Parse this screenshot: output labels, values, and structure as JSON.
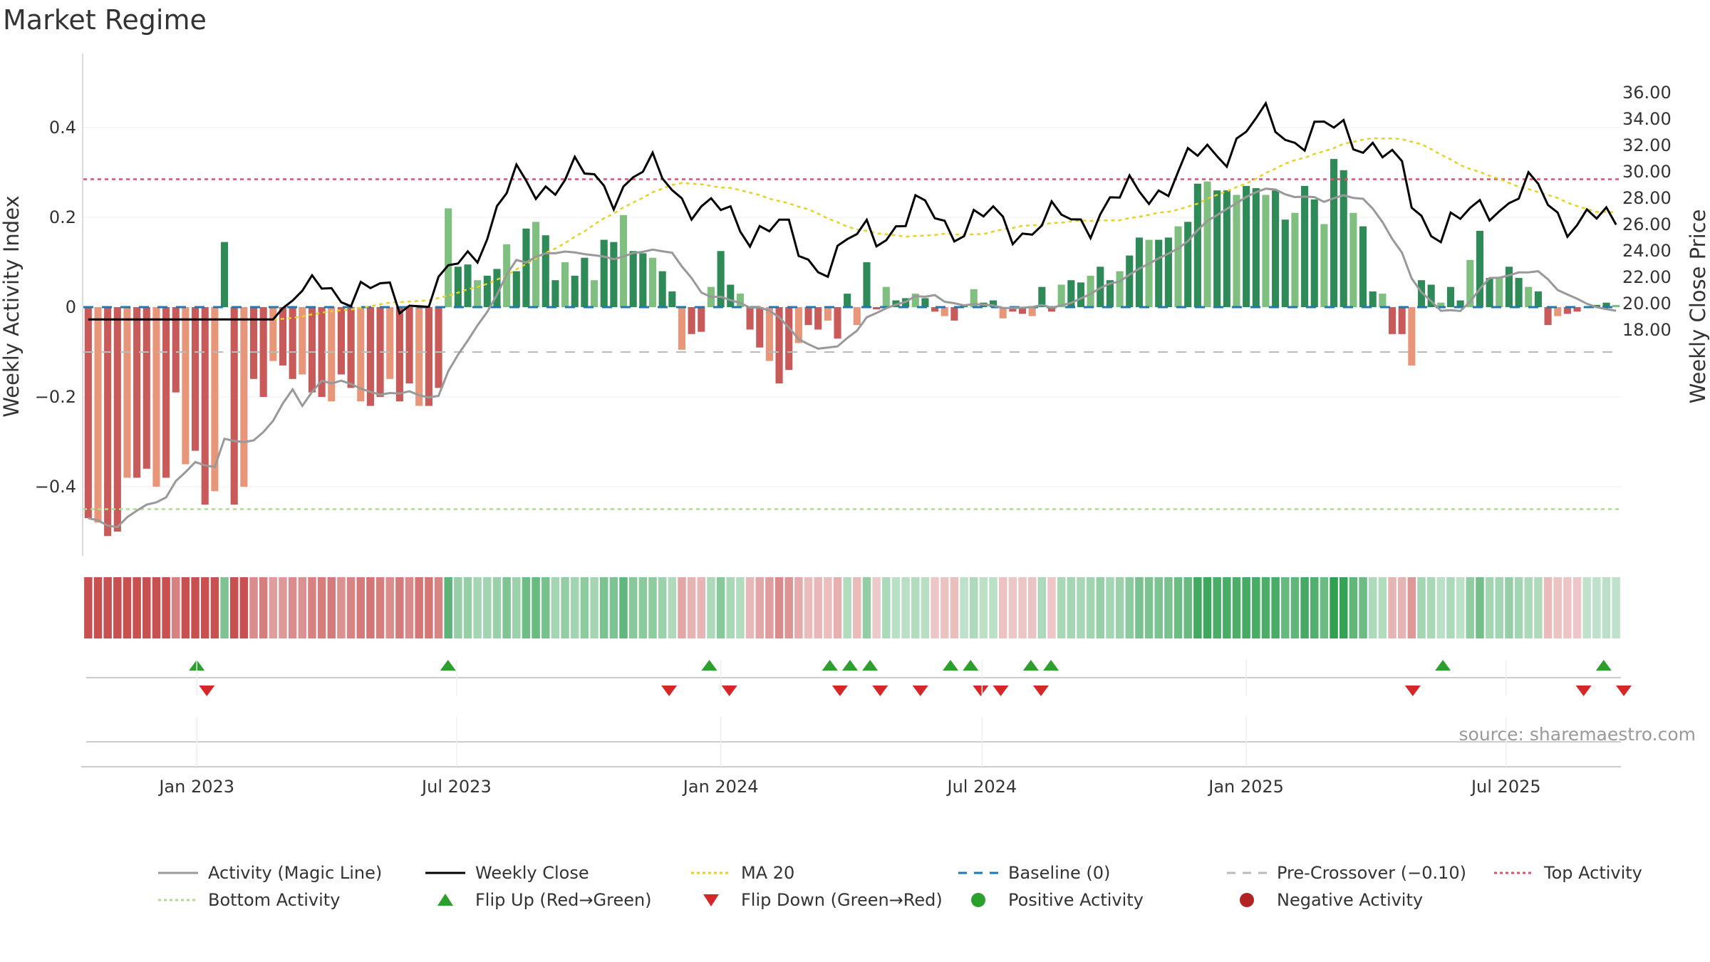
{
  "title": "Market Regime",
  "source": "source: sharemaestro.com",
  "colors": {
    "pos_dark": "#2e8b57",
    "pos_light": "#7fbf7f",
    "neg_dark": "#c85a5a",
    "neg_light": "#e8967a",
    "magic": "#999999",
    "close": "#000000",
    "ma": "#e6d224",
    "baseline": "#1f77b4",
    "precross": "#bbbbbb",
    "top": "#d9546a",
    "bottom": "#a8e08a",
    "flip_up": "#2ca02c",
    "flip_down": "#d62728",
    "pos_dot": "#2ca02c",
    "neg_dot": "#b22222"
  },
  "chart_data": {
    "type": "bar",
    "title": "Market Regime",
    "x_range": [
      "2022-10-14",
      "2025-09-19"
    ],
    "ylabel_left": "Weekly Activity Index",
    "ylabel_right": "Weekly Close Price",
    "ylim_left": [
      -0.55,
      0.55
    ],
    "ylim_right": [
      18.0,
      36.5
    ],
    "yticks_left": [
      "−0.4",
      "−0.2",
      "0",
      "0.2",
      "0.4"
    ],
    "yticks_left_values": [
      -0.4,
      -0.2,
      0,
      0.2,
      0.4
    ],
    "yticks_right": [
      "18.00",
      "20.00",
      "22.00",
      "24.00",
      "26.00",
      "28.00",
      "30.00",
      "32.00",
      "34.00",
      "36.00"
    ],
    "x_ticks": [
      {
        "date": "2023-01-01",
        "label": "Jan 2023"
      },
      {
        "date": "2023-07-01",
        "label": "Jul 2023"
      },
      {
        "date": "2024-01-01",
        "label": "Jan 2024"
      },
      {
        "date": "2024-07-01",
        "label": "Jul 2024"
      },
      {
        "date": "2025-01-01",
        "label": "Jan 2025"
      },
      {
        "date": "2025-07-01",
        "label": "Jul 2025"
      }
    ],
    "reference_lines": {
      "baseline": 0,
      "pre_crossover": -0.1,
      "top_activity": 0.285,
      "bottom_activity": -0.45
    },
    "activity_index": [
      -0.47,
      -0.48,
      -0.51,
      -0.5,
      -0.38,
      -0.38,
      -0.36,
      -0.4,
      -0.38,
      -0.19,
      -0.35,
      -0.32,
      -0.44,
      -0.41,
      0.145,
      -0.44,
      -0.4,
      -0.16,
      -0.2,
      -0.12,
      -0.13,
      -0.16,
      -0.15,
      -0.19,
      -0.2,
      -0.21,
      -0.15,
      -0.18,
      -0.21,
      -0.22,
      -0.2,
      -0.16,
      -0.21,
      -0.17,
      -0.22,
      -0.22,
      -0.18,
      0.22,
      0.09,
      0.095,
      0.06,
      0.07,
      0.085,
      0.14,
      0.08,
      0.175,
      0.19,
      0.16,
      0.06,
      0.1,
      0.07,
      0.11,
      0.06,
      0.15,
      0.145,
      0.205,
      0.125,
      0.12,
      0.11,
      0.08,
      0.035,
      -0.095,
      -0.06,
      -0.055,
      0.045,
      0.125,
      0.05,
      0.03,
      -0.05,
      -0.09,
      -0.12,
      -0.17,
      -0.14,
      -0.08,
      -0.04,
      -0.05,
      -0.03,
      -0.07,
      0.03,
      -0.04,
      0.1,
      -0.005,
      0.045,
      0.015,
      0.02,
      0.03,
      0.02,
      -0.01,
      -0.02,
      -0.03,
      0.005,
      0.04,
      0.01,
      0.015,
      -0.025,
      -0.01,
      -0.015,
      -0.02,
      0.045,
      -0.01,
      0.05,
      0.06,
      0.055,
      0.07,
      0.09,
      0.06,
      0.08,
      0.115,
      0.155,
      0.15,
      0.15,
      0.155,
      0.18,
      0.19,
      0.275,
      0.28,
      0.26,
      0.26,
      0.25,
      0.27,
      0.265,
      0.25,
      0.26,
      0.195,
      0.21,
      0.27,
      0.24,
      0.185,
      0.33,
      0.305,
      0.21,
      0.18,
      0.035,
      0.03,
      -0.06,
      -0.06,
      -0.13,
      0.06,
      0.05,
      0.01,
      0.045,
      0.015,
      0.105,
      0.17,
      0.065,
      0.065,
      0.09,
      0.065,
      0.045,
      0.035,
      -0.04,
      -0.02,
      -0.015,
      -0.01,
      0.0,
      0.005,
      0.01,
      0.005
    ],
    "flip_up_dates": [
      "2023-01-01",
      "2023-06-25",
      "2023-12-24",
      "2024-03-17",
      "2024-03-31",
      "2024-04-14",
      "2024-06-09",
      "2024-06-23",
      "2024-08-04",
      "2024-08-18",
      "2025-05-18",
      "2025-09-07"
    ],
    "flip_down_dates": [
      "2023-01-08",
      "2023-11-26",
      "2024-01-07",
      "2024-03-24",
      "2024-04-21",
      "2024-05-19",
      "2024-06-30",
      "2024-07-14",
      "2024-08-11",
      "2025-04-27",
      "2025-08-24",
      "2025-09-21"
    ],
    "legend": [
      {
        "label": "Activity (Magic Line)",
        "kind": "line",
        "color": "#999999",
        "dash": ""
      },
      {
        "label": "Weekly Close",
        "kind": "line",
        "color": "#000000",
        "dash": ""
      },
      {
        "label": "MA 20",
        "kind": "line",
        "color": "#e6d224",
        "dash": "4,4"
      },
      {
        "label": "Baseline (0)",
        "kind": "line",
        "color": "#1f77b4",
        "dash": "12,10"
      },
      {
        "label": "Pre-Crossover (−0.10)",
        "kind": "line",
        "color": "#bbbbbb",
        "dash": "12,10"
      },
      {
        "label": "Top Activity",
        "kind": "line",
        "color": "#d9546a",
        "dash": "4,4"
      },
      {
        "label": "Bottom Activity",
        "kind": "line",
        "color": "#a8e08a",
        "dash": "4,4"
      },
      {
        "label": "Flip Up (Red→Green)",
        "kind": "tri-up",
        "color": "#2ca02c"
      },
      {
        "label": "Flip Down (Green→Red)",
        "kind": "tri-down",
        "color": "#d62728"
      },
      {
        "label": "Positive Activity",
        "kind": "dot",
        "color": "#2ca02c"
      },
      {
        "label": "Negative Activity",
        "kind": "dot",
        "color": "#b22222"
      }
    ]
  }
}
